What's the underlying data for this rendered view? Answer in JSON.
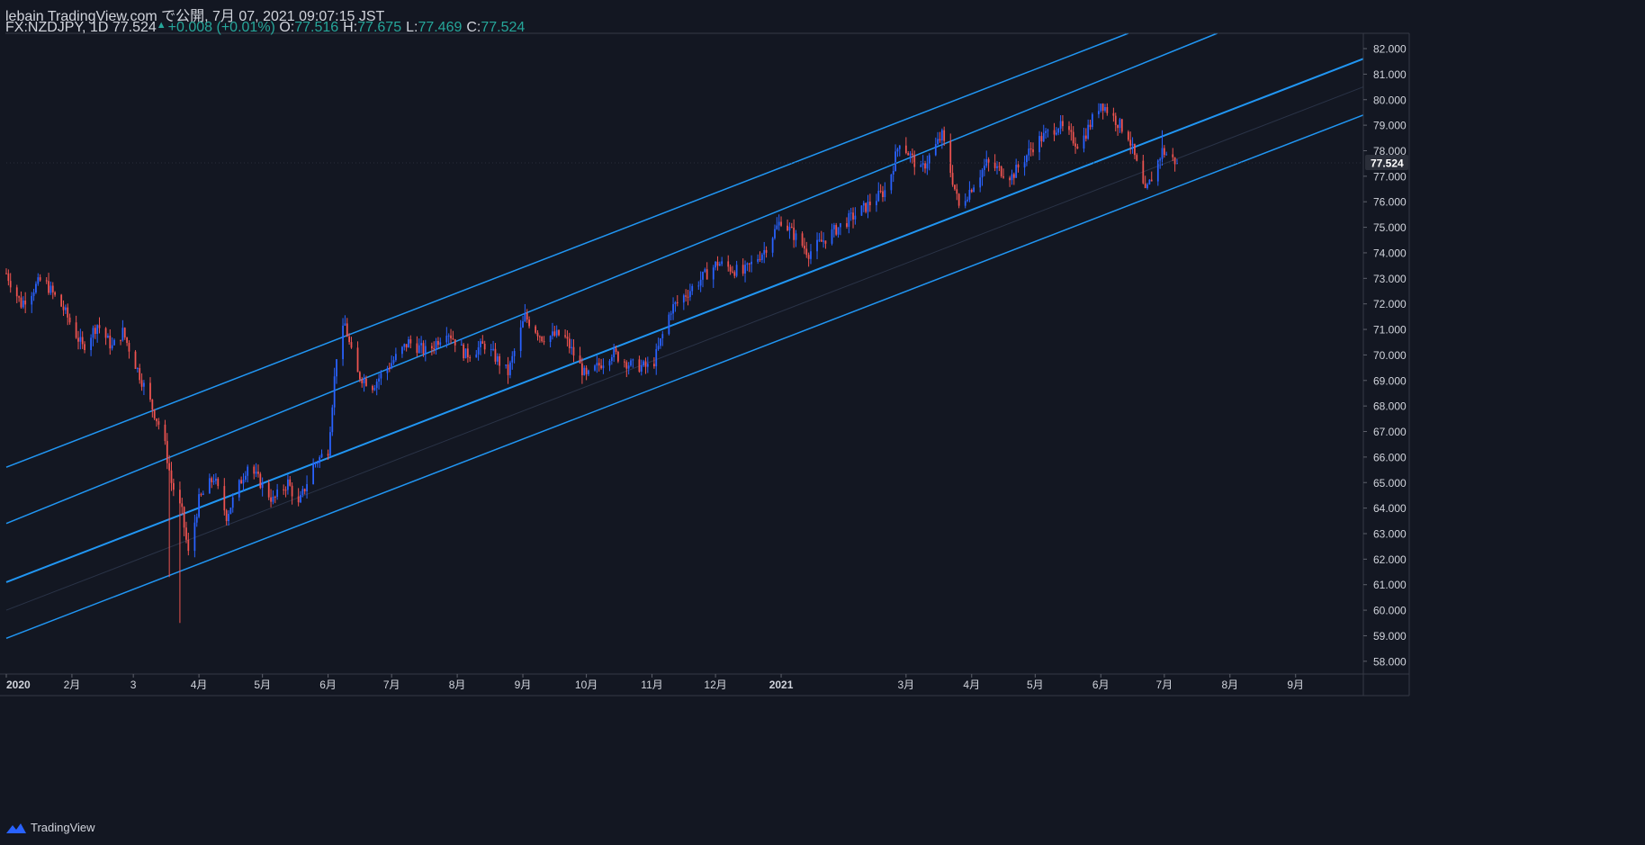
{
  "header": {
    "published_line": "lebain TradingView.com で公開, 7月 07, 2021 09:07:15 JST",
    "symbol_line": "FX:NZDJPY, 1D 77.524",
    "change": "+0.008 (+0.01%)",
    "ohlc": [
      {
        "label": "O:",
        "value": "77.516"
      },
      {
        "label": "H:",
        "value": "77.675"
      },
      {
        "label": "L:",
        "value": "77.469"
      },
      {
        "label": "C:",
        "value": "77.524"
      }
    ]
  },
  "footer": {
    "brand": "TradingView"
  },
  "colors": {
    "background": "#131722",
    "up": "#2962ff",
    "down": "#ef5350",
    "channel": "#2196f3",
    "text": "#d1d4dc"
  },
  "chart_data": {
    "type": "candlestick",
    "symbol": "FX:NZDJPY",
    "interval": "1D",
    "last_price": 77.524,
    "ylim": [
      57.5,
      82.6
    ],
    "y_ticks": [
      58,
      59,
      60,
      61,
      62,
      63,
      64,
      65,
      66,
      67,
      68,
      69,
      70,
      71,
      72,
      73,
      74,
      75,
      76,
      77,
      78,
      79,
      80,
      81,
      82
    ],
    "y_tick_labels": [
      "58.000",
      "59.000",
      "60.000",
      "61.000",
      "62.000",
      "63.000",
      "64.000",
      "65.000",
      "66.000",
      "67.000",
      "68.000",
      "69.000",
      "70.000",
      "71.000",
      "72.000",
      "73.000",
      "74.000",
      "75.000",
      "76.000",
      "77.000",
      "78.000",
      "79.000",
      "80.000",
      "81.000",
      "82.000"
    ],
    "x_range": [
      "2020-01-01",
      "2021-10-03"
    ],
    "x_ticks": [
      {
        "date": "2020-01-01",
        "label": "2020"
      },
      {
        "date": "2020-02-01",
        "label": "2月"
      },
      {
        "date": "2020-03-01",
        "label": "3"
      },
      {
        "date": "2020-04-01",
        "label": "4月"
      },
      {
        "date": "2020-05-01",
        "label": "5月"
      },
      {
        "date": "2020-06-01",
        "label": "6月"
      },
      {
        "date": "2020-07-01",
        "label": "7月"
      },
      {
        "date": "2020-08-01",
        "label": "8月"
      },
      {
        "date": "2020-09-01",
        "label": "9月"
      },
      {
        "date": "2020-10-01",
        "label": "10月"
      },
      {
        "date": "2020-11-01",
        "label": "11月"
      },
      {
        "date": "2020-12-01",
        "label": "12月"
      },
      {
        "date": "2021-01-01",
        "label": "2021"
      },
      {
        "date": "2021-03-01",
        "label": "3月"
      },
      {
        "date": "2021-04-01",
        "label": "4月"
      },
      {
        "date": "2021-05-01",
        "label": "5月"
      },
      {
        "date": "2021-06-01",
        "label": "6月"
      },
      {
        "date": "2021-07-01",
        "label": "7月"
      },
      {
        "date": "2021-08-01",
        "label": "8月"
      },
      {
        "date": "2021-09-01",
        "label": "9月"
      }
    ],
    "channel_lines": [
      {
        "start": [
          "2020-01-01",
          65.6
        ],
        "end": [
          "2021-06-14",
          82.6
        ]
      },
      {
        "start": [
          "2020-01-01",
          63.4
        ],
        "end": [
          "2021-07-26",
          82.6
        ]
      },
      {
        "start": [
          "2020-01-01",
          61.1
        ],
        "end": [
          "2021-10-03",
          81.6
        ]
      },
      {
        "start": [
          "2020-01-01",
          58.9
        ],
        "end": [
          "2021-10-03",
          79.4
        ]
      }
    ],
    "price_path": [
      [
        "2020-01-01",
        73.2
      ],
      [
        "2020-01-08",
        72.0
      ],
      [
        "2020-01-18",
        73.0
      ],
      [
        "2020-01-28",
        71.8
      ],
      [
        "2020-02-06",
        70.3
      ],
      [
        "2020-02-13",
        71.2
      ],
      [
        "2020-02-20",
        70.3
      ],
      [
        "2020-02-25",
        70.9
      ],
      [
        "2020-03-05",
        69.0
      ],
      [
        "2020-03-12",
        67.5
      ],
      [
        "2020-03-15",
        66.9
      ],
      [
        "2020-03-19",
        65.0
      ],
      [
        "2020-03-24",
        63.8
      ],
      [
        "2020-03-27",
        62.2
      ],
      [
        "2020-04-01",
        64.3
      ],
      [
        "2020-04-08",
        65.2
      ],
      [
        "2020-04-14",
        63.7
      ],
      [
        "2020-04-24",
        65.7
      ],
      [
        "2020-05-06",
        64.3
      ],
      [
        "2020-05-13",
        65.0
      ],
      [
        "2020-05-18",
        64.1
      ],
      [
        "2020-05-25",
        65.7
      ],
      [
        "2020-06-01",
        66.3
      ],
      [
        "2020-06-05",
        70.0
      ],
      [
        "2020-06-09",
        71.2
      ],
      [
        "2020-06-14",
        69.3
      ],
      [
        "2020-06-22",
        68.8
      ],
      [
        "2020-07-01",
        69.7
      ],
      [
        "2020-07-09",
        70.5
      ],
      [
        "2020-07-18",
        70.1
      ],
      [
        "2020-07-27",
        71.0
      ],
      [
        "2020-08-05",
        70.0
      ],
      [
        "2020-08-14",
        70.4
      ],
      [
        "2020-08-25",
        69.3
      ],
      [
        "2020-09-02",
        71.5
      ],
      [
        "2020-09-10",
        70.7
      ],
      [
        "2020-09-20",
        70.8
      ],
      [
        "2020-10-01",
        69.1
      ],
      [
        "2020-10-13",
        70.1
      ],
      [
        "2020-10-22",
        69.6
      ],
      [
        "2020-11-01",
        69.5
      ],
      [
        "2020-11-10",
        71.8
      ],
      [
        "2020-11-22",
        72.8
      ],
      [
        "2020-12-02",
        73.6
      ],
      [
        "2020-12-14",
        73.2
      ],
      [
        "2020-12-24",
        74.1
      ],
      [
        "2021-01-01",
        75.3
      ],
      [
        "2021-01-14",
        74.0
      ],
      [
        "2021-01-28",
        75.0
      ],
      [
        "2021-02-10",
        75.8
      ],
      [
        "2021-02-20",
        76.5
      ],
      [
        "2021-02-26",
        78.4
      ],
      [
        "2021-03-08",
        77.2
      ],
      [
        "2021-03-18",
        78.6
      ],
      [
        "2021-03-26",
        75.8
      ],
      [
        "2021-04-08",
        77.5
      ],
      [
        "2021-04-20",
        77.0
      ],
      [
        "2021-05-01",
        78.3
      ],
      [
        "2021-05-12",
        79.0
      ],
      [
        "2021-05-22",
        78.2
      ],
      [
        "2021-06-01",
        79.9
      ],
      [
        "2021-06-14",
        78.6
      ],
      [
        "2021-06-22",
        76.3
      ],
      [
        "2021-06-30",
        78.0
      ],
      [
        "2021-07-07",
        77.524
      ]
    ]
  }
}
